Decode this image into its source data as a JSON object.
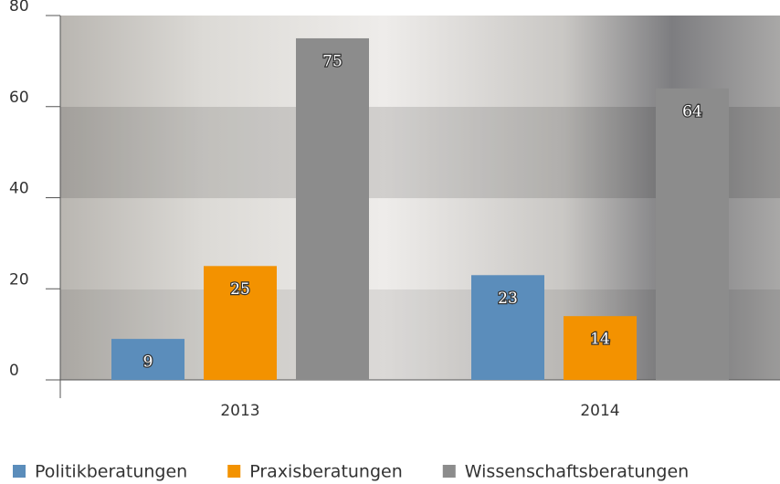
{
  "chart_data": {
    "type": "bar",
    "categories": [
      "2013",
      "2014"
    ],
    "series": [
      {
        "name": "Politikberatungen",
        "color": "#5b8dbb",
        "values": [
          9,
          23
        ]
      },
      {
        "name": "Praxisberatungen",
        "color": "#f39200",
        "values": [
          25,
          14
        ]
      },
      {
        "name": "Wissenschaftsberatungen",
        "color": "#8c8c8c",
        "values": [
          75,
          64
        ]
      }
    ],
    "ylim": [
      0,
      80
    ],
    "yticks": [
      0,
      20,
      40,
      60,
      80
    ],
    "legend": "bottom"
  }
}
